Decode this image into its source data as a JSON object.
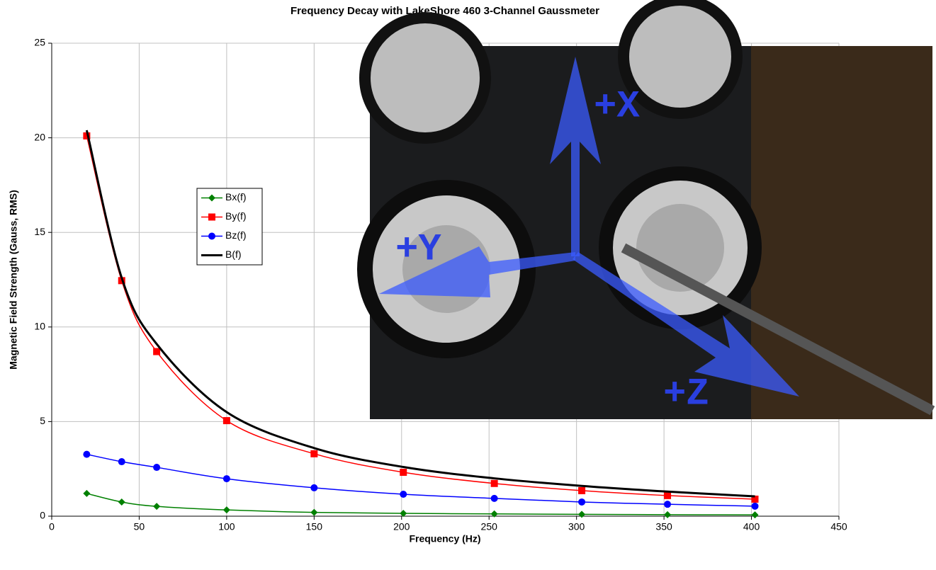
{
  "chart_data": {
    "type": "line",
    "title": "Frequency Decay with LakeShore 460 3-Channel Gaussmeter",
    "x_label": "Frequency (Hz)",
    "y_label": "Magnetic Field Strength (Gauss, RMS)",
    "x": [
      20,
      40,
      60,
      100,
      150,
      201,
      253,
      303,
      352,
      402
    ],
    "series": [
      {
        "name": "Bx(f)",
        "color": "#008000",
        "marker": "diamond",
        "values": [
          1.2,
          0.75,
          0.52,
          0.33,
          0.2,
          0.15,
          0.12,
          0.1,
          0.08,
          0.07
        ]
      },
      {
        "name": "By(f)",
        "color": "#ff0000",
        "marker": "square",
        "values": [
          20.1,
          12.45,
          8.7,
          5.05,
          3.3,
          2.32,
          1.73,
          1.35,
          1.09,
          0.9
        ]
      },
      {
        "name": "Bz(f)",
        "color": "#0000ff",
        "marker": "circle",
        "values": [
          3.27,
          2.88,
          2.58,
          1.98,
          1.5,
          1.16,
          0.94,
          0.75,
          0.63,
          0.53
        ]
      },
      {
        "name": "B(f)",
        "color": "#000000",
        "marker": "none",
        "values": [
          20.4,
          12.6,
          9.1,
          5.5,
          3.6,
          2.6,
          2.0,
          1.6,
          1.3,
          1.05
        ]
      }
    ],
    "xlim": [
      0,
      450
    ],
    "xticks": [
      0,
      50,
      100,
      150,
      200,
      250,
      300,
      350,
      400,
      450
    ],
    "ylim": [
      0,
      25
    ],
    "yticks": [
      0,
      5,
      10,
      15,
      20,
      25
    ],
    "grid": true,
    "legend_position": "left",
    "photo_labels": [
      "+X",
      "+Y",
      "+Z"
    ]
  }
}
